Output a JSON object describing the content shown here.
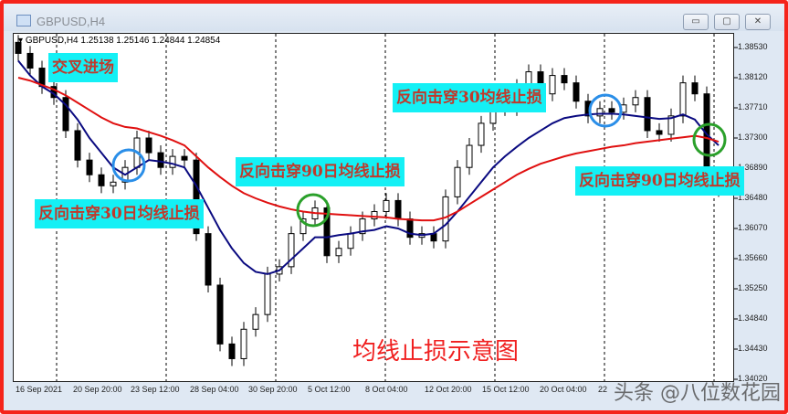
{
  "window": {
    "title": "GBPUSD,H4",
    "buttons": {
      "minimize": "▭",
      "maximize": "▢",
      "close": "✕"
    }
  },
  "symbol_info": "GBPUSD,H4  1.25138 1.25146 1.24844 1.24854",
  "colors": {
    "ma30": "#0a0a80",
    "ma90": "#e01010",
    "annotation_bg": "#14f0f5",
    "annotation_text": "#c0392b",
    "circle_blue": "#2a8ee8",
    "circle_green": "#2aa02a",
    "frame": "#f5241b"
  },
  "annotations": [
    "交叉进场",
    "反向击穿30日均线止损",
    "反向击穿90日均线止损",
    "反向击穿30均线止损",
    "反向击穿90日均线止损"
  ],
  "watermark": "头条 @八位数花园",
  "chart_data": {
    "type": "candlestick",
    "title": "均线止损示意图",
    "ylim": [
      1.3398,
      1.3872
    ],
    "y_ticks": [
      "1.38530",
      "1.38120",
      "1.37710",
      "1.37300",
      "1.36890",
      "1.36480",
      "1.36070",
      "1.35660",
      "1.35250",
      "1.34840",
      "1.34430",
      "1.34020"
    ],
    "x_ticks": [
      "16 Sep 2021",
      "20 Sep 20:00",
      "23 Sep 12:00",
      "28 Sep 04:00",
      "30 Sep 20:00",
      "5 Oct 12:00",
      "8 Oct 04:00",
      "12 Oct 20:00",
      "15 Oct 12:00",
      "20 Oct 04:00",
      "22"
    ],
    "grid": "vertical dashed",
    "candles_close": [
      1.3845,
      1.3825,
      1.38,
      1.3785,
      1.374,
      1.37,
      1.368,
      1.3665,
      1.367,
      1.369,
      1.373,
      1.371,
      1.369,
      1.3705,
      1.37,
      1.36,
      1.353,
      1.345,
      1.343,
      1.347,
      1.349,
      1.3545,
      1.3555,
      1.36,
      1.362,
      1.3635,
      1.357,
      1.358,
      1.36,
      1.362,
      1.363,
      1.3645,
      1.362,
      1.3595,
      1.36,
      1.359,
      1.365,
      1.369,
      1.372,
      1.375,
      1.378,
      1.377,
      1.38,
      1.382,
      1.379,
      1.3815,
      1.3805,
      1.378,
      1.376,
      1.377,
      1.3765,
      1.3775,
      1.3785,
      1.374,
      1.3735,
      1.376,
      1.3805,
      1.379,
      1.368,
      1.366
    ],
    "open_first": 1.386,
    "wick": 0.001,
    "series": [
      {
        "values": [
          1.3835,
          1.3815,
          1.38,
          1.379,
          1.3775,
          1.3755,
          1.373,
          1.371,
          1.369,
          1.368,
          1.369,
          1.37,
          1.3698,
          1.3695,
          1.369,
          1.3665,
          1.3635,
          1.3605,
          1.358,
          1.356,
          1.3548,
          1.3545,
          1.355,
          1.3565,
          1.358,
          1.3595,
          1.3595,
          1.3598,
          1.36,
          1.3603,
          1.3605,
          1.361,
          1.3607,
          1.36,
          1.3598,
          1.36,
          1.3612,
          1.363,
          1.365,
          1.367,
          1.369,
          1.3705,
          1.3718,
          1.373,
          1.374,
          1.375,
          1.3757,
          1.376,
          1.3762,
          1.3763,
          1.3763,
          1.3762,
          1.376,
          1.3758,
          1.3756,
          1.3757,
          1.3762,
          1.3755,
          1.3735,
          1.372
        ]
      },
      {
        "values": [
          1.3812,
          1.3808,
          1.3802,
          1.3796,
          1.3788,
          1.3778,
          1.3768,
          1.3758,
          1.375,
          1.3745,
          1.3743,
          1.3738,
          1.3733,
          1.3727,
          1.372,
          1.3705,
          1.369,
          1.3677,
          1.3665,
          1.3655,
          1.3648,
          1.3642,
          1.3637,
          1.3633,
          1.363,
          1.3628,
          1.3627,
          1.3626,
          1.3625,
          1.3624,
          1.3623,
          1.3622,
          1.362,
          1.3619,
          1.3618,
          1.3618,
          1.3622,
          1.363,
          1.364,
          1.365,
          1.366,
          1.367,
          1.368,
          1.3688,
          1.3695,
          1.37,
          1.3705,
          1.3709,
          1.3712,
          1.3715,
          1.3718,
          1.372,
          1.3723,
          1.3725,
          1.3727,
          1.3729,
          1.3731,
          1.3733,
          1.373,
          1.3725
        ]
      }
    ]
  }
}
